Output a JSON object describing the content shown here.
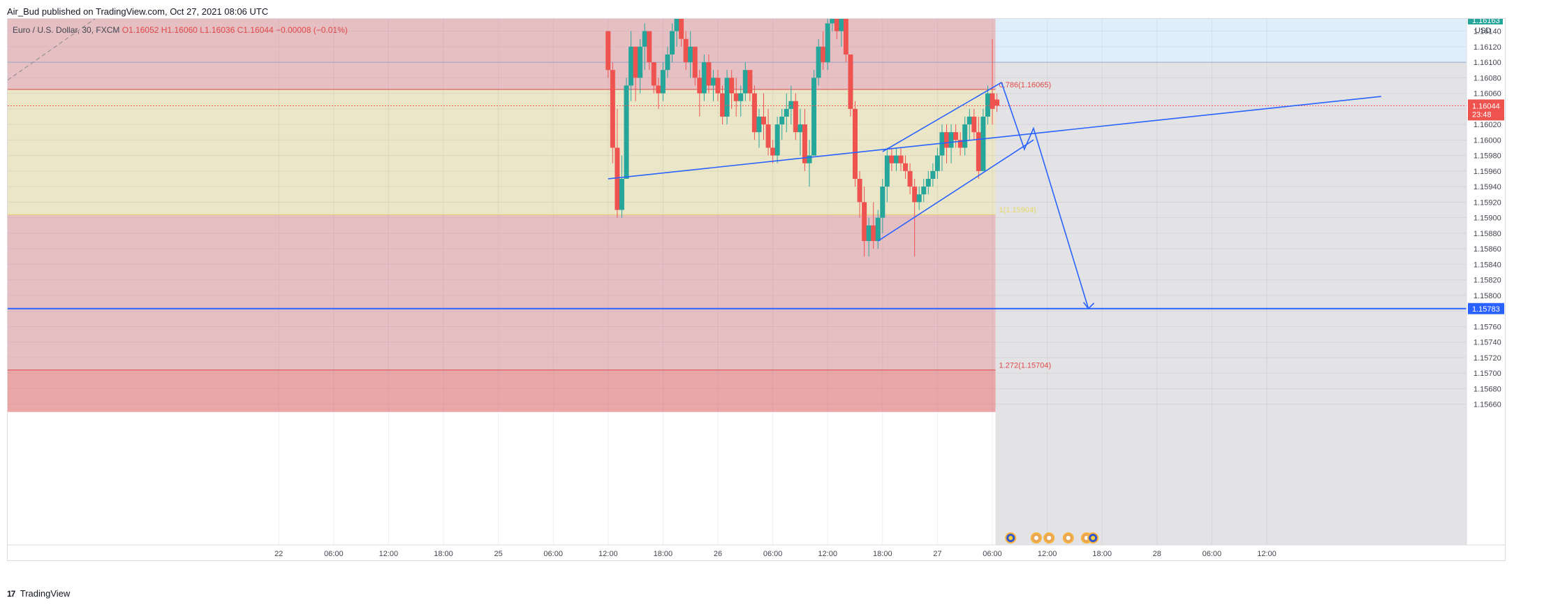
{
  "header": {
    "author": "Air_Bud",
    "published_text": "published on TradingView.com, Oct 27, 2021 08:06 UTC"
  },
  "legend": {
    "symbol": "Euro / U.S. Dollar, 30, FXCM",
    "open": "O1.16052",
    "high": "H1.16060",
    "low": "L1.16036",
    "close": "C1.16044",
    "change": "−0.00008 (−0.01%)"
  },
  "footer": {
    "logo": "17",
    "brand": "TradingView"
  },
  "colors": {
    "bull": "#26a69a",
    "bear": "#ef5350",
    "drawing": "#2962ff",
    "zone_red": "#e6bfc3",
    "zone_yellow": "#ebe6c8",
    "zone_blue": "#dfeefb",
    "zone_grey": "#e3e3e5",
    "zone_deep_red": "#eba7a8"
  },
  "chart_data": {
    "type": "candlestick",
    "symbol": "EURUSD",
    "timeframe": "30",
    "currency": "USD",
    "y_range": [
      1.1565,
      1.1618
    ],
    "y_ticks": [
      "1.16140",
      "1.16120",
      "1.16100",
      "1.16080",
      "1.16060",
      "1.16040",
      "1.16020",
      "1.16000",
      "1.15980",
      "1.15960",
      "1.15940",
      "1.15920",
      "1.15900",
      "1.15880",
      "1.15860",
      "1.15840",
      "1.15820",
      "1.15800",
      "1.15780",
      "1.15760",
      "1.15740",
      "1.15720",
      "1.15700",
      "1.15680",
      "1.15660"
    ],
    "top_price_label": "1.16163",
    "x_ticks": [
      {
        "label": "22",
        "t": -48
      },
      {
        "label": "06:00",
        "t": -42
      },
      {
        "label": "12:00",
        "t": -36
      },
      {
        "label": "18:00",
        "t": -30
      },
      {
        "label": "25",
        "t": -24
      },
      {
        "label": "06:00",
        "t": -18
      },
      {
        "label": "12:00",
        "t": -12
      },
      {
        "label": "18:00",
        "t": -6
      },
      {
        "label": "26",
        "t": 0
      },
      {
        "label": "06:00",
        "t": 6
      },
      {
        "label": "12:00",
        "t": 12
      },
      {
        "label": "18:00",
        "t": 18
      },
      {
        "label": "27",
        "t": 24
      },
      {
        "label": "06:00",
        "t": 30
      },
      {
        "label": "12:00",
        "t": 36
      },
      {
        "label": "18:00",
        "t": 42
      },
      {
        "label": "28",
        "t": 48
      },
      {
        "label": "06:00",
        "t": 54
      },
      {
        "label": "12:00",
        "t": 60
      }
    ],
    "x_unit": "hours from Oct 26 00:00",
    "current_price": {
      "value": 1.16044,
      "label": "1.16044",
      "countdown": "23:48"
    },
    "target_price": {
      "value": 1.15783,
      "label": "1.15783"
    },
    "fib_labels": [
      {
        "text": "0.786(1.16065)",
        "price": 1.16065
      },
      {
        "text": "1(1.15904)",
        "price": 1.15904
      },
      {
        "text": "1.272(1.15704)",
        "price": 1.15704
      }
    ],
    "zones": [
      {
        "name": "upper-red",
        "from": 1.161,
        "to": 1.1618
      },
      {
        "name": "red-band",
        "from": 1.16065,
        "to": 1.161
      },
      {
        "name": "yellow-band",
        "from": 1.15904,
        "to": 1.16065
      },
      {
        "name": "lower-red",
        "from": 1.15704,
        "to": 1.15904
      },
      {
        "name": "deep-red",
        "from": 1.1565,
        "to": 1.15704
      }
    ],
    "projection_start_t": 30.5,
    "candles": [
      [
        -12.0,
        1.1614,
        1.1614,
        1.1608,
        1.1609
      ],
      [
        -11.5,
        1.1609,
        1.161,
        1.1597,
        1.1599
      ],
      [
        -11.0,
        1.1599,
        1.1604,
        1.159,
        1.1591
      ],
      [
        -10.5,
        1.1591,
        1.1598,
        1.159,
        1.1595
      ],
      [
        -10.0,
        1.1595,
        1.1608,
        1.1595,
        1.1607
      ],
      [
        -9.5,
        1.1607,
        1.1614,
        1.1605,
        1.1612
      ],
      [
        -9.0,
        1.1612,
        1.1612,
        1.1605,
        1.1608
      ],
      [
        -8.5,
        1.1608,
        1.1613,
        1.1606,
        1.1612
      ],
      [
        -8.0,
        1.1612,
        1.1615,
        1.1609,
        1.1614
      ],
      [
        -7.5,
        1.1614,
        1.1614,
        1.1609,
        1.161
      ],
      [
        -7.0,
        1.161,
        1.161,
        1.1606,
        1.1607
      ],
      [
        -6.5,
        1.1607,
        1.1608,
        1.1604,
        1.1606
      ],
      [
        -6.0,
        1.1606,
        1.161,
        1.1605,
        1.1609
      ],
      [
        -5.5,
        1.1609,
        1.1612,
        1.1608,
        1.1611
      ],
      [
        -5.0,
        1.1611,
        1.1615,
        1.161,
        1.1614
      ],
      [
        -4.5,
        1.1614,
        1.1616,
        1.1612,
        1.1616
      ],
      [
        -4.0,
        1.1616,
        1.1618,
        1.1612,
        1.1613
      ],
      [
        -3.5,
        1.1613,
        1.1614,
        1.1609,
        1.161
      ],
      [
        -3.0,
        1.161,
        1.1614,
        1.1608,
        1.1612
      ],
      [
        -2.5,
        1.1612,
        1.1612,
        1.1607,
        1.1608
      ],
      [
        -2.0,
        1.1608,
        1.1609,
        1.1603,
        1.1606
      ],
      [
        -1.5,
        1.1606,
        1.1611,
        1.1605,
        1.161
      ],
      [
        -1.0,
        1.161,
        1.1611,
        1.1606,
        1.1607
      ],
      [
        -0.5,
        1.1607,
        1.1609,
        1.1605,
        1.1608
      ],
      [
        0.0,
        1.1608,
        1.1609,
        1.1605,
        1.1606
      ],
      [
        0.5,
        1.1606,
        1.1607,
        1.1602,
        1.1603
      ],
      [
        1.0,
        1.1603,
        1.1609,
        1.1602,
        1.1608
      ],
      [
        1.5,
        1.1608,
        1.1609,
        1.1604,
        1.1606
      ],
      [
        2.0,
        1.1606,
        1.1608,
        1.1603,
        1.1605
      ],
      [
        2.5,
        1.1605,
        1.1607,
        1.1603,
        1.1606
      ],
      [
        3.0,
        1.1606,
        1.161,
        1.1605,
        1.1609
      ],
      [
        3.5,
        1.1609,
        1.1609,
        1.1605,
        1.1606
      ],
      [
        4.0,
        1.1606,
        1.1607,
        1.16,
        1.1601
      ],
      [
        4.5,
        1.1601,
        1.1604,
        1.1599,
        1.1603
      ],
      [
        5.0,
        1.1603,
        1.1606,
        1.16,
        1.1602
      ],
      [
        5.5,
        1.1602,
        1.1604,
        1.1598,
        1.1599
      ],
      [
        6.0,
        1.1599,
        1.16,
        1.1597,
        1.1598
      ],
      [
        6.5,
        1.1598,
        1.1603,
        1.1597,
        1.1602
      ],
      [
        7.0,
        1.1602,
        1.1604,
        1.16,
        1.1603
      ],
      [
        7.5,
        1.1603,
        1.1606,
        1.1601,
        1.1604
      ],
      [
        8.0,
        1.1604,
        1.1607,
        1.1602,
        1.1605
      ],
      [
        8.5,
        1.1605,
        1.1606,
        1.16,
        1.1601
      ],
      [
        9.0,
        1.1601,
        1.1604,
        1.1598,
        1.1602
      ],
      [
        9.5,
        1.1602,
        1.1604,
        1.1596,
        1.1597
      ],
      [
        10.0,
        1.1597,
        1.16,
        1.1594,
        1.1598
      ],
      [
        10.5,
        1.1598,
        1.1609,
        1.1598,
        1.1608
      ],
      [
        11.0,
        1.1608,
        1.1613,
        1.1607,
        1.1612
      ],
      [
        11.5,
        1.1612,
        1.1614,
        1.1609,
        1.161
      ],
      [
        12.0,
        1.161,
        1.1616,
        1.1609,
        1.1615
      ],
      [
        12.5,
        1.1615,
        1.1618,
        1.1614,
        1.1617
      ],
      [
        13.0,
        1.1617,
        1.1618,
        1.1613,
        1.1614
      ],
      [
        13.5,
        1.1614,
        1.1618,
        1.1612,
        1.1616
      ],
      [
        14.0,
        1.1616,
        1.1616,
        1.161,
        1.1611
      ],
      [
        14.5,
        1.1611,
        1.1611,
        1.1603,
        1.1604
      ],
      [
        15.0,
        1.1604,
        1.1605,
        1.1594,
        1.1595
      ],
      [
        15.5,
        1.1595,
        1.1596,
        1.159,
        1.1592
      ],
      [
        16.0,
        1.1592,
        1.1594,
        1.1585,
        1.1587
      ],
      [
        16.5,
        1.1587,
        1.159,
        1.1585,
        1.1589
      ],
      [
        17.0,
        1.1589,
        1.1592,
        1.1586,
        1.1587
      ],
      [
        17.5,
        1.1587,
        1.1591,
        1.1586,
        1.159
      ],
      [
        18.0,
        1.159,
        1.1595,
        1.1588,
        1.1594
      ],
      [
        18.5,
        1.1594,
        1.1599,
        1.1592,
        1.1598
      ],
      [
        19.0,
        1.1598,
        1.1599,
        1.1596,
        1.1597
      ],
      [
        19.5,
        1.1597,
        1.1599,
        1.1596,
        1.1598
      ],
      [
        20.0,
        1.1598,
        1.1599,
        1.1596,
        1.1597
      ],
      [
        20.5,
        1.1597,
        1.1598,
        1.1595,
        1.1596
      ],
      [
        21.0,
        1.1596,
        1.1597,
        1.1593,
        1.1594
      ],
      [
        21.5,
        1.1594,
        1.1595,
        1.1585,
        1.1592
      ],
      [
        22.0,
        1.1592,
        1.1594,
        1.1591,
        1.1593
      ],
      [
        22.5,
        1.1593,
        1.1595,
        1.1592,
        1.1594
      ],
      [
        23.0,
        1.1594,
        1.1596,
        1.1593,
        1.1595
      ],
      [
        23.5,
        1.1595,
        1.1597,
        1.1594,
        1.1596
      ],
      [
        24.0,
        1.1596,
        1.1599,
        1.1595,
        1.1598
      ],
      [
        24.5,
        1.1598,
        1.1602,
        1.1596,
        1.1601
      ],
      [
        25.0,
        1.1601,
        1.1602,
        1.1597,
        1.1599
      ],
      [
        25.5,
        1.1599,
        1.1602,
        1.1597,
        1.1601
      ],
      [
        26.0,
        1.1601,
        1.1602,
        1.1599,
        1.16
      ],
      [
        26.5,
        1.16,
        1.1601,
        1.1598,
        1.1599
      ],
      [
        27.0,
        1.1599,
        1.1603,
        1.1598,
        1.1602
      ],
      [
        27.5,
        1.1602,
        1.1604,
        1.16,
        1.1603
      ],
      [
        28.0,
        1.1603,
        1.1604,
        1.16,
        1.1601
      ],
      [
        28.5,
        1.1601,
        1.1603,
        1.1595,
        1.1596
      ],
      [
        29.0,
        1.1596,
        1.1604,
        1.1596,
        1.1603
      ],
      [
        29.5,
        1.1603,
        1.1607,
        1.1602,
        1.1606
      ],
      [
        30.0,
        1.1606,
        1.1613,
        1.1602,
        1.1604
      ],
      [
        30.5,
        1.16052,
        1.1606,
        1.16036,
        1.16044
      ]
    ],
    "drawings": [
      {
        "name": "lower-trendline",
        "points": [
          [
            -12.0,
            1.1595
          ],
          [
            72.5,
            1.16056
          ]
        ]
      },
      {
        "name": "wedge-lower-line",
        "points": [
          [
            17.5,
            1.1587
          ],
          [
            34.5,
            1.16
          ]
        ]
      },
      {
        "name": "wedge-upper-line",
        "points": [
          [
            18.0,
            1.15985
          ],
          [
            31.0,
            1.16074
          ]
        ]
      },
      {
        "name": "projection-path",
        "points": [
          [
            31.0,
            1.16074
          ],
          [
            33.5,
            1.15988
          ],
          [
            34.5,
            1.16015
          ],
          [
            40.5,
            1.15783
          ]
        ]
      }
    ]
  }
}
